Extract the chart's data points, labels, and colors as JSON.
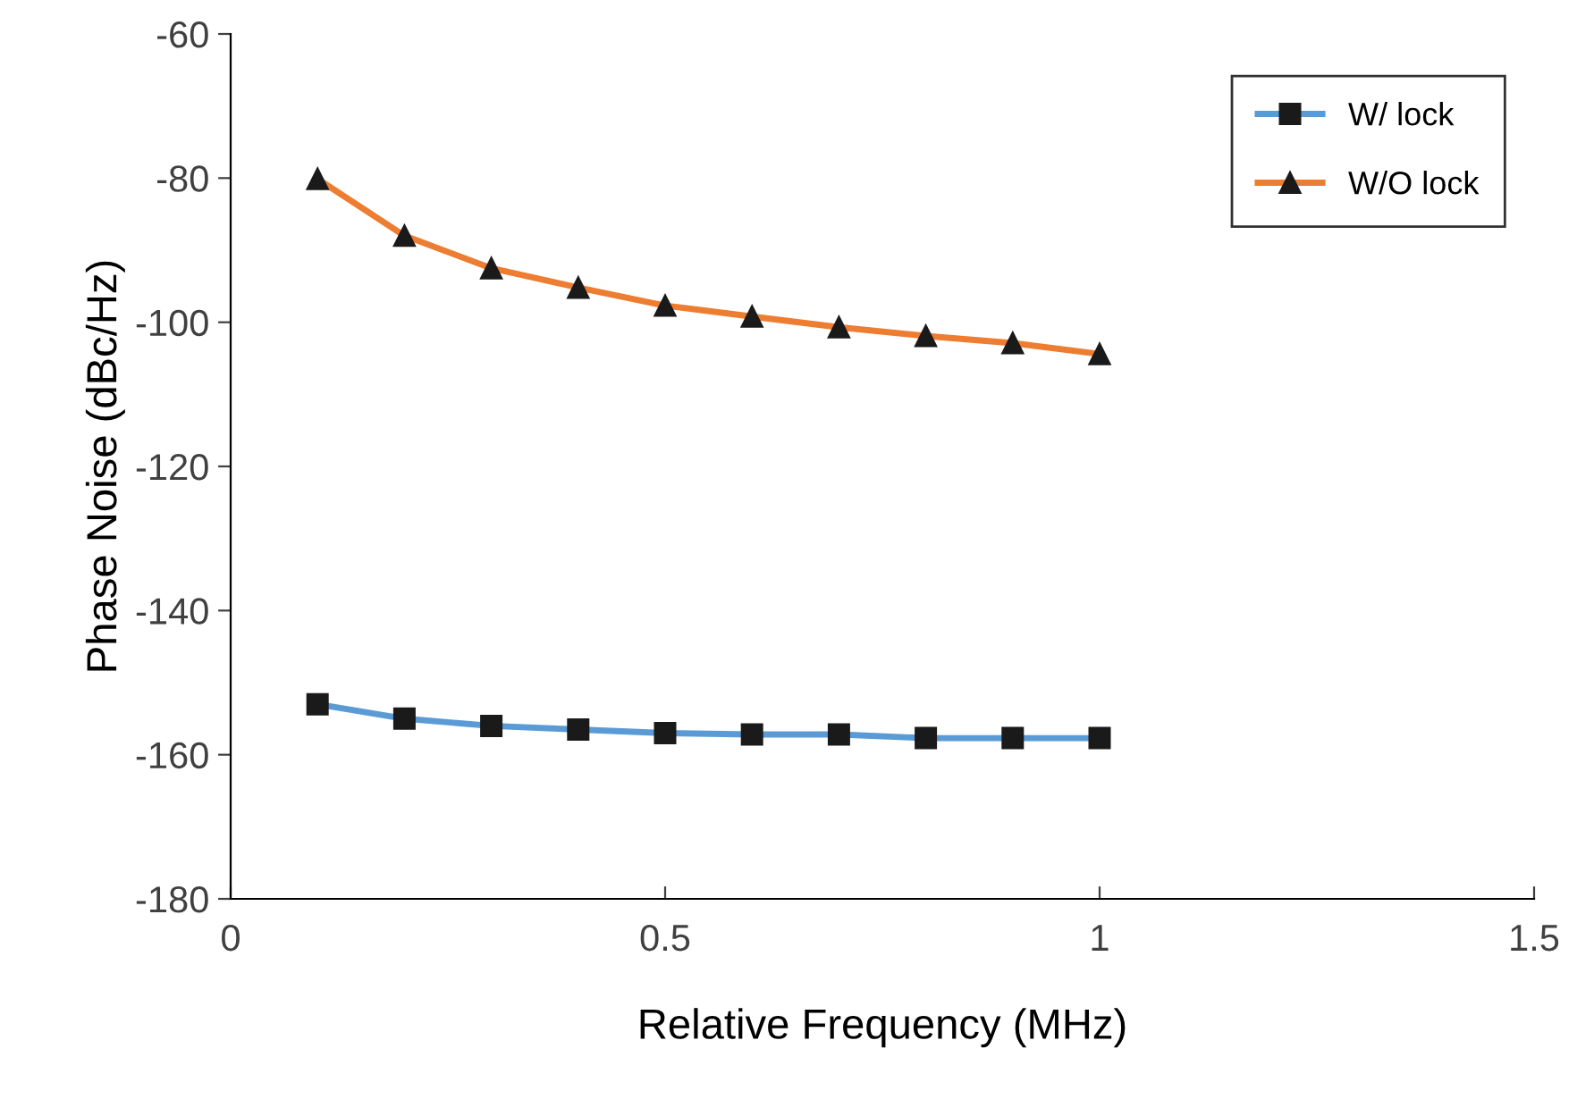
{
  "chart_data": {
    "type": "line",
    "xlabel": "Relative Frequency (MHz)",
    "ylabel": "Phase Noise (dBc/Hz)",
    "x": [
      0.1,
      0.2,
      0.3,
      0.4,
      0.5,
      0.6,
      0.7,
      0.8,
      0.9,
      1.0
    ],
    "series": [
      {
        "name": "W/ lock",
        "color": "#5b9bd5",
        "marker": "square",
        "values": [
          -153.0,
          -155.0,
          -156.0,
          -156.5,
          -157.0,
          -157.2,
          -157.2,
          -157.7,
          -157.7,
          -157.7
        ]
      },
      {
        "name": "W/O lock",
        "color": "#ed7d31",
        "marker": "triangle",
        "values": [
          -80.1,
          -88.0,
          -92.5,
          -95.2,
          -97.7,
          -99.2,
          -100.7,
          -101.9,
          -102.9,
          -104.4
        ]
      }
    ],
    "xlim": [
      0,
      1.5
    ],
    "xticks": [
      0,
      0.5,
      1,
      1.5
    ],
    "ylim": [
      -180,
      -60
    ],
    "yticks": [
      -180,
      -160,
      -140,
      -120,
      -100,
      -80,
      -60
    ],
    "grid": false,
    "legend": "top right"
  }
}
